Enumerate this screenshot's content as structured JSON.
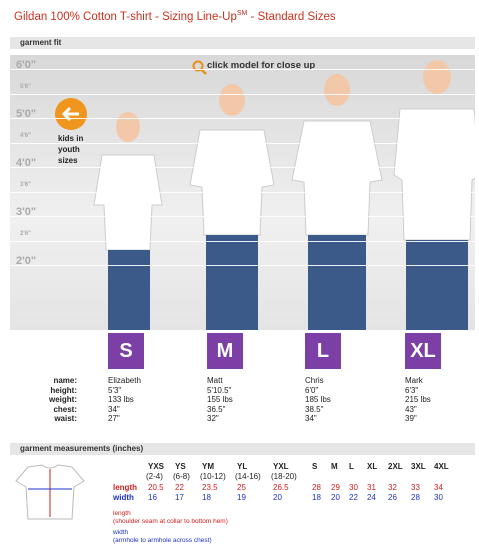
{
  "header": {
    "title": "Gildan 100% Cotton T-shirt - Sizing Line-Up",
    "title_superscript": "SM",
    "title_suffix": " - Standard Sizes"
  },
  "fit_section": {
    "heading": "garment fit",
    "ruler_labels": [
      "6'0\"",
      "5'6\"",
      "5'0\"",
      "4'6\"",
      "4'0\"",
      "3'6\"",
      "3'0\"",
      "2'6\"",
      "2'0\""
    ],
    "close_up_link": "click model for close up",
    "kids_link": "kids in youth sizes",
    "row_labels": [
      "name:",
      "height:",
      "weight:",
      "chest:",
      "waist:"
    ],
    "models": [
      {
        "size": "S",
        "details": [
          "Elizabeth",
          "5'3\"",
          "133 lbs",
          "34\"",
          "27\""
        ]
      },
      {
        "size": "M",
        "details": [
          "Matt",
          "5'10.5\"",
          "155 lbs",
          "36.5\"",
          "32\""
        ]
      },
      {
        "size": "L",
        "details": [
          "Chris",
          "6'0\"",
          "185 lbs",
          "38.5\"",
          "34\""
        ]
      },
      {
        "size": "XL",
        "details": [
          "Mark",
          "6'3\"",
          "215 lbs",
          "43\"",
          "39\""
        ]
      }
    ]
  },
  "measurements": {
    "heading": "garment measurements (inches)",
    "columns": [
      {
        "size": "YXS",
        "range": "(2-4)"
      },
      {
        "size": "YS",
        "range": "(6-8)"
      },
      {
        "size": "YM",
        "range": "(10-12)"
      },
      {
        "size": "YL",
        "range": "(14-16)"
      },
      {
        "size": "YXL",
        "range": "(18-20)"
      },
      {
        "size": "S"
      },
      {
        "size": "M"
      },
      {
        "size": "L"
      },
      {
        "size": "XL"
      },
      {
        "size": "2XL"
      },
      {
        "size": "3XL"
      },
      {
        "size": "4XL"
      }
    ],
    "rows": [
      {
        "label": "length",
        "values": [
          20.5,
          22,
          23.5,
          25,
          26.5,
          28,
          29,
          30,
          31,
          32,
          33,
          34
        ]
      },
      {
        "label": "width",
        "values": [
          16,
          17,
          18,
          19,
          20,
          18,
          20,
          22,
          24,
          26,
          28,
          30
        ]
      }
    ],
    "notes": [
      {
        "label": "length",
        "detail": "(shoulder seam at collar to bottom hem)"
      },
      {
        "label": "width",
        "detail": "(armhole to armhole across chest)"
      }
    ]
  }
}
